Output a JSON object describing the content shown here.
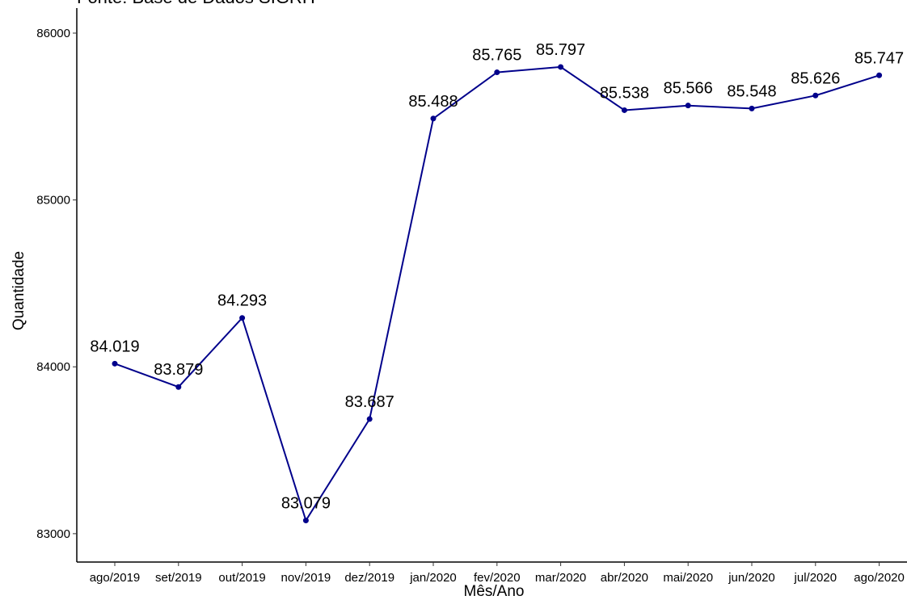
{
  "chart_data": {
    "type": "line",
    "subtitle": "Fonte: Base de Dados SIGRH",
    "xlabel": "Mês/Ano",
    "ylabel": "Quantidade",
    "categories": [
      "ago/2019",
      "set/2019",
      "out/2019",
      "nov/2019",
      "dez/2019",
      "jan/2020",
      "fev/2020",
      "mar/2020",
      "abr/2020",
      "mai/2020",
      "jun/2020",
      "jul/2020",
      "ago/2020"
    ],
    "values": [
      84019,
      83879,
      84293,
      83079,
      83687,
      85488,
      85765,
      85797,
      85538,
      85566,
      85548,
      85626,
      85747
    ],
    "data_labels": [
      "84.019",
      "83.879",
      "84.293",
      "83.079",
      "83.687",
      "85.488",
      "85.765",
      "85.797",
      "85.538",
      "85.566",
      "85.548",
      "85.626",
      "85.747"
    ],
    "ylim": [
      82830,
      86150
    ],
    "y_ticks": [
      83000,
      84000,
      85000,
      86000
    ],
    "y_tick_labels": [
      "83000",
      "84000",
      "85000",
      "86000"
    ],
    "grid": false,
    "legend": "none",
    "line_color": "#00008b",
    "marker_color": "#00008b"
  }
}
